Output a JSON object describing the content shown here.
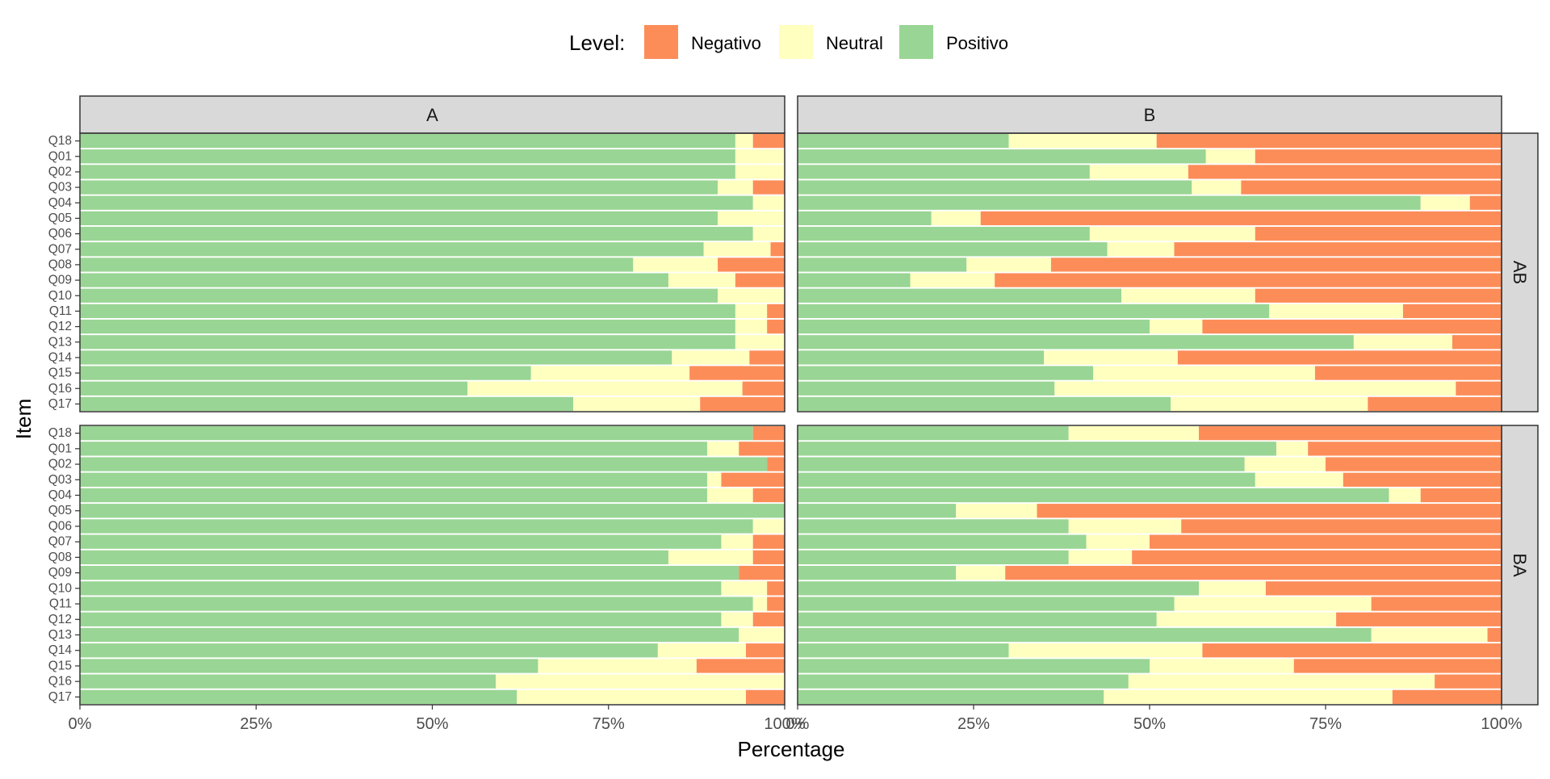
{
  "chart_data": {
    "type": "bar",
    "orientation": "horizontal",
    "stacked": true,
    "legend": {
      "title": "Level:",
      "position": "top",
      "items": [
        {
          "name": "Negativo",
          "color": "#FC8D59"
        },
        {
          "name": "Neutral",
          "color": "#FFFFBF"
        },
        {
          "name": "Positivo",
          "color": "#99D594"
        }
      ]
    },
    "xlabel": "Percentage",
    "ylabel": "Item",
    "xlim": [
      0,
      100
    ],
    "x_ticks": [
      "0%",
      "25%",
      "50%",
      "75%",
      "100%"
    ],
    "stack_order": [
      "Positivo",
      "Neutral",
      "Negativo"
    ],
    "categories": [
      "Q18",
      "Q01",
      "Q02",
      "Q03",
      "Q04",
      "Q05",
      "Q06",
      "Q07",
      "Q08",
      "Q09",
      "Q10",
      "Q11",
      "Q12",
      "Q13",
      "Q14",
      "Q15",
      "Q16",
      "Q17"
    ],
    "col_facets": [
      "A",
      "B"
    ],
    "row_facets": [
      "AB",
      "BA"
    ],
    "panels": [
      {
        "col": "A",
        "row": "AB",
        "series": [
          {
            "name": "Positivo",
            "values": [
              93,
              93,
              93,
              90.5,
              95.5,
              90.5,
              95.5,
              88.5,
              78.5,
              83.5,
              90.5,
              93,
              93,
              93,
              84,
              64,
              55,
              70
            ]
          },
          {
            "name": "Neutral",
            "values": [
              2.5,
              7,
              7,
              5,
              4.5,
              9.5,
              4.5,
              9.5,
              12,
              9.5,
              9.5,
              4.5,
              4.5,
              7,
              11,
              22.5,
              39,
              18
            ]
          },
          {
            "name": "Negativo",
            "values": [
              4.5,
              0,
              0,
              4.5,
              0,
              0,
              0,
              2,
              9.5,
              7,
              0,
              2.5,
              2.5,
              0,
              5,
              13.5,
              6,
              12
            ]
          }
        ]
      },
      {
        "col": "B",
        "row": "AB",
        "series": [
          {
            "name": "Positivo",
            "values": [
              30,
              58,
              41.5,
              56,
              88.5,
              19,
              41.5,
              44,
              24,
              16,
              46,
              67,
              50,
              79,
              35,
              42,
              36.5,
              53
            ]
          },
          {
            "name": "Neutral",
            "values": [
              21,
              7,
              14,
              7,
              7,
              7,
              23.5,
              9.5,
              12,
              12,
              19,
              19,
              7.5,
              14,
              19,
              31.5,
              57,
              28
            ]
          },
          {
            "name": "Negativo",
            "values": [
              49,
              35,
              44.5,
              37,
              4.5,
              74,
              35,
              46.5,
              64,
              72,
              35,
              14,
              42.5,
              7,
              46,
              26.5,
              6.5,
              19
            ]
          }
        ]
      },
      {
        "col": "A",
        "row": "BA",
        "series": [
          {
            "name": "Positivo",
            "values": [
              95.5,
              89,
              97.5,
              89,
              89,
              100,
              95.5,
              91,
              83.5,
              93.5,
              91,
              95.5,
              91,
              93.5,
              82,
              65,
              59,
              62
            ]
          },
          {
            "name": "Neutral",
            "values": [
              0,
              4.5,
              0,
              2,
              6.5,
              0,
              4.5,
              4.5,
              12,
              0,
              6.5,
              2,
              4.5,
              6.5,
              12.5,
              22.5,
              41,
              32.5
            ]
          },
          {
            "name": "Negativo",
            "values": [
              4.5,
              6.5,
              2.5,
              9,
              4.5,
              0,
              0,
              4.5,
              4.5,
              6.5,
              2.5,
              2.5,
              4.5,
              0,
              5.5,
              12.5,
              0,
              5.5
            ]
          }
        ]
      },
      {
        "col": "B",
        "row": "BA",
        "series": [
          {
            "name": "Positivo",
            "values": [
              38.5,
              68,
              63.5,
              65,
              84,
              22.5,
              38.5,
              41,
              38.5,
              22.5,
              57,
              53.5,
              51,
              81.5,
              30,
              50,
              47,
              43.5
            ]
          },
          {
            "name": "Neutral",
            "values": [
              18.5,
              4.5,
              11.5,
              12.5,
              4.5,
              11.5,
              16,
              9,
              9,
              7,
              9.5,
              28,
              25.5,
              16.5,
              27.5,
              20.5,
              43.5,
              41
            ]
          },
          {
            "name": "Negativo",
            "values": [
              43,
              27.5,
              25,
              22.5,
              11.5,
              66,
              45.5,
              50,
              52.5,
              70.5,
              33.5,
              18.5,
              23.5,
              2,
              42.5,
              29.5,
              9.5,
              15.5
            ]
          }
        ]
      }
    ]
  }
}
